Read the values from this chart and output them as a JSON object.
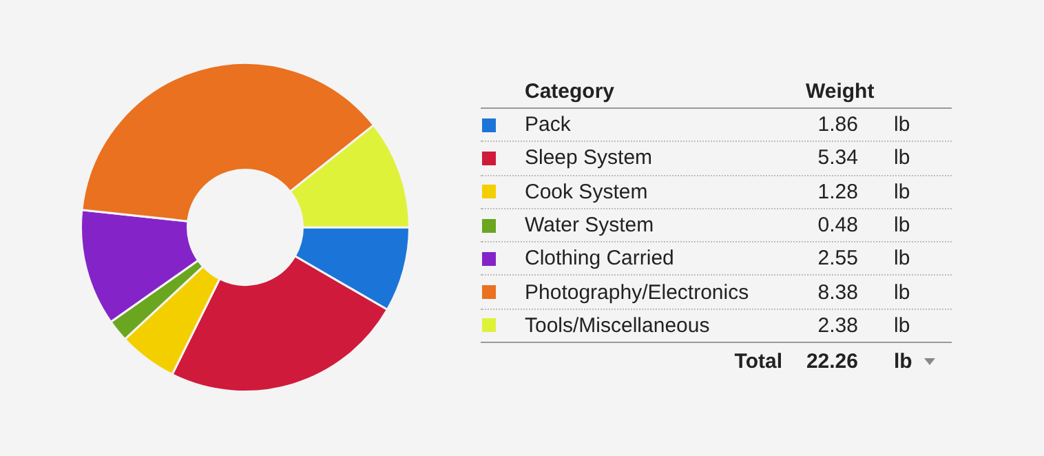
{
  "chart_data": {
    "type": "donut",
    "legend_title": "Category",
    "ylabel": "Weight",
    "categories": [
      "Pack",
      "Sleep System",
      "Cook System",
      "Water System",
      "Clothing Carried",
      "Photography/Electronics",
      "Tools/Miscellaneous"
    ],
    "values": [
      1.86,
      5.34,
      1.28,
      0.48,
      2.55,
      8.38,
      2.38
    ],
    "colors": [
      "#1b75d8",
      "#d01a3b",
      "#f3cf00",
      "#6aa61f",
      "#8424c8",
      "#e9711f",
      "#dff23a"
    ],
    "data_labels": true,
    "legend": "right",
    "totals": [
      "22.26"
    ],
    "annotations": [
      "Total",
      "lb"
    ]
  }
}
